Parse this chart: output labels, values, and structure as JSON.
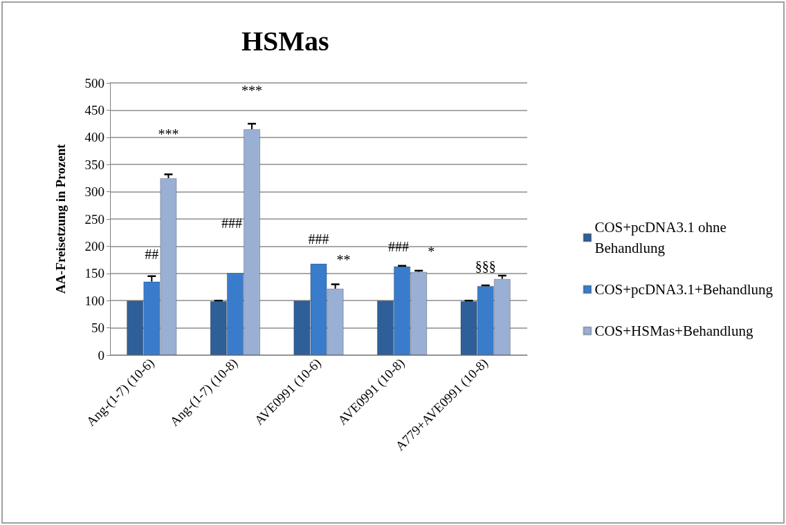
{
  "chart_data": {
    "type": "bar",
    "title": "HSMas",
    "ylabel": "AA-Freisetzung in Prozent",
    "categories": [
      "Ang-(1-7) (10-6)",
      "Ang-(1-7) (10-8)",
      "AVE0991 (10-6)",
      "AVE0991 (10-8)",
      "A779+AVE0991 (10-8)"
    ],
    "series": [
      {
        "name": "COS+pcDNA3.1 ohne Behandlung",
        "color": "#2f5f98",
        "values": [
          100,
          99,
          100,
          100,
          99
        ],
        "errors": [
          null,
          1,
          null,
          null,
          1
        ]
      },
      {
        "name": "COS+pcDNA3.1+Behandlung",
        "color": "#3a7ccc",
        "values": [
          135,
          151,
          168,
          163,
          127
        ],
        "errors": [
          10,
          null,
          null,
          1,
          1
        ]
      },
      {
        "name": "COS+HSMas+Behandlung",
        "color": "#9aafd4",
        "values": [
          325,
          415,
          122,
          153,
          140
        ],
        "errors": [
          7,
          10,
          8,
          2,
          6
        ]
      }
    ],
    "ylim": [
      0,
      500
    ],
    "yticks": [
      0,
      50,
      100,
      150,
      200,
      250,
      300,
      350,
      400,
      450,
      500
    ],
    "grid": "y",
    "legend": "right",
    "annotations": [
      "##",
      "***",
      "###",
      "***",
      "###",
      "**",
      "###",
      "*",
      "§§§"
    ]
  }
}
